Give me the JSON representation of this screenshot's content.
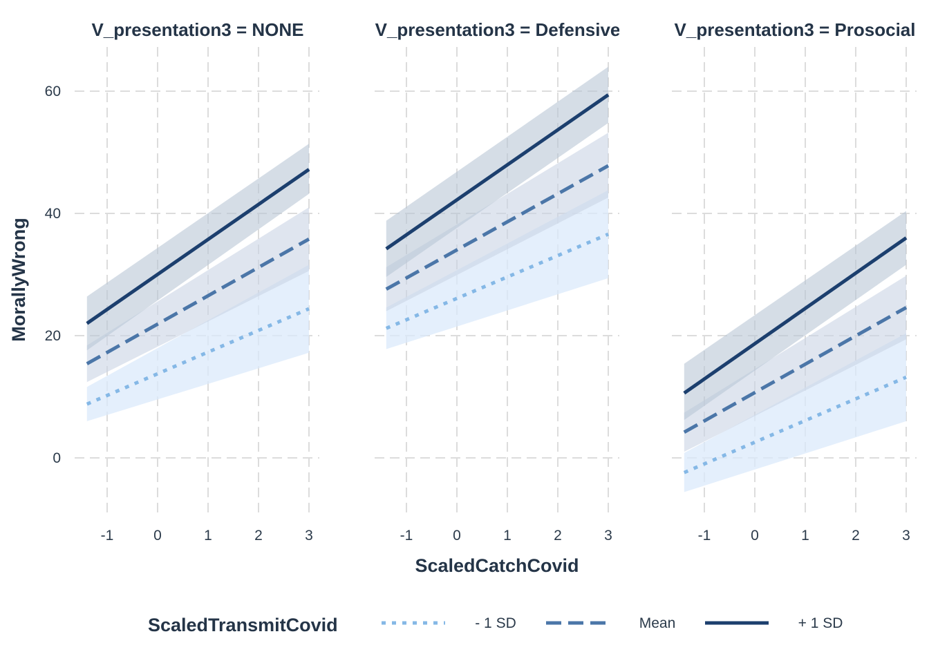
{
  "chart_data": {
    "type": "line",
    "xlabel": "ScaledCatchCovid",
    "ylabel": "MorallyWrong",
    "xlim": [
      -1.4,
      3.0
    ],
    "ylim": [
      -10,
      67
    ],
    "x_ticks": [
      -1,
      0,
      1,
      2,
      3
    ],
    "x_tick_labels": [
      "-1",
      "0",
      "1",
      "2",
      "3"
    ],
    "y_ticks": [
      0,
      20,
      40,
      60
    ],
    "y_tick_labels": [
      "0",
      "20",
      "40",
      "60"
    ],
    "grid": true,
    "legend": {
      "title": "ScaledTransmitCovid",
      "placement": "bottom",
      "entries": [
        {
          "label": "- 1 SD",
          "color": "#85b8e6",
          "style": "dotted"
        },
        {
          "label": "Mean",
          "color": "#4b76a8",
          "style": "dashed"
        },
        {
          "label": "+ 1 SD",
          "color": "#1c3f6e",
          "style": "solid"
        }
      ]
    },
    "colors": {
      "minus1sd": "#85b8e6",
      "mean": "#4b76a8",
      "plus1sd": "#1c3f6e",
      "band_minus1sd": "#dbe9fb",
      "band_mean": "#c9d4e4",
      "band_plus1sd": "#b9c6d6"
    },
    "panels": [
      {
        "strip": "V_presentation3 = NONE",
        "series": [
          {
            "name": "- 1 SD",
            "x": [
              -1.4,
              3.0
            ],
            "y": [
              8.8,
              24.4
            ],
            "lower": [
              6.0,
              17.2
            ],
            "upper": [
              11.6,
              31.6
            ]
          },
          {
            "name": "Mean",
            "x": [
              -1.4,
              3.0
            ],
            "y": [
              15.4,
              35.8
            ],
            "lower": [
              12.4,
              30.6
            ],
            "upper": [
              18.4,
              41.0
            ]
          },
          {
            "name": "+ 1 SD",
            "x": [
              -1.4,
              3.0
            ],
            "y": [
              22.0,
              47.2
            ],
            "lower": [
              17.6,
              43.2
            ],
            "upper": [
              26.4,
              51.4
            ]
          }
        ]
      },
      {
        "strip": "V_presentation3 = Defensive",
        "series": [
          {
            "name": "- 1 SD",
            "x": [
              -1.4,
              3.0
            ],
            "y": [
              21.2,
              36.6
            ],
            "lower": [
              17.8,
              29.4
            ],
            "upper": [
              24.6,
              43.8
            ]
          },
          {
            "name": "Mean",
            "x": [
              -1.4,
              3.0
            ],
            "y": [
              27.6,
              47.8
            ],
            "lower": [
              24.0,
              42.6
            ],
            "upper": [
              31.2,
              53.2
            ]
          },
          {
            "name": "+ 1 SD",
            "x": [
              -1.4,
              3.0
            ],
            "y": [
              34.2,
              59.4
            ],
            "lower": [
              29.6,
              54.8
            ],
            "upper": [
              38.8,
              64.0
            ]
          }
        ]
      },
      {
        "strip": "V_presentation3 = Prosocial",
        "series": [
          {
            "name": "- 1 SD",
            "x": [
              -1.4,
              3.0
            ],
            "y": [
              -2.4,
              13.2
            ],
            "lower": [
              -5.6,
              6.0
            ],
            "upper": [
              0.8,
              20.4
            ]
          },
          {
            "name": "Mean",
            "x": [
              -1.4,
              3.0
            ],
            "y": [
              4.2,
              24.6
            ],
            "lower": [
              1.0,
              19.4
            ],
            "upper": [
              7.4,
              29.8
            ]
          },
          {
            "name": "+ 1 SD",
            "x": [
              -1.4,
              3.0
            ],
            "y": [
              10.6,
              36.0
            ],
            "lower": [
              6.2,
              31.6
            ],
            "upper": [
              15.4,
              40.4
            ]
          }
        ]
      }
    ]
  }
}
